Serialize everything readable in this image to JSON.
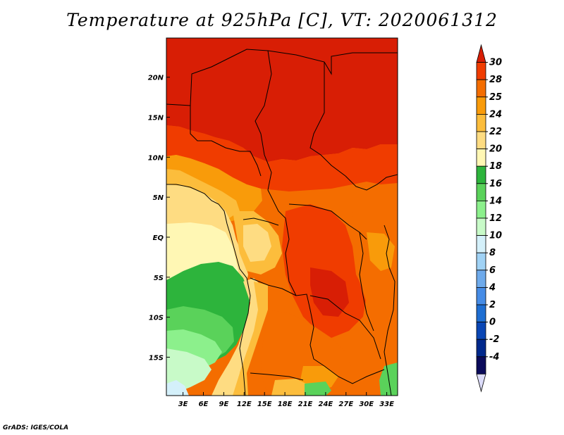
{
  "title": "Temperature at 925hPa [C], VT: 2020061312",
  "credit": "GrADS: IGES/COLA",
  "map": {
    "lon_labels": [
      "3E",
      "6E",
      "9E",
      "12E",
      "15E",
      "18E",
      "21E",
      "24E",
      "27E",
      "30E",
      "33E"
    ],
    "lat_labels": [
      "20N",
      "15N",
      "10N",
      "5N",
      "EQ",
      "5S",
      "10S",
      "15S"
    ]
  },
  "colorbar": {
    "labels": [
      "30",
      "28",
      "25",
      "24",
      "22",
      "20",
      "18",
      "16",
      "14",
      "12",
      "10",
      "8",
      "6",
      "4",
      "2",
      "0",
      "-2",
      "-4"
    ],
    "colors": [
      "#d81e05",
      "#f03c00",
      "#f46d00",
      "#f99b0a",
      "#fcbd3c",
      "#fedc82",
      "#fff7b4",
      "#2db43c",
      "#5ad25a",
      "#8cf08c",
      "#c8fac8",
      "#d4f0fa",
      "#a0d2f5",
      "#6eaaeb",
      "#468ce6",
      "#1e6ed2",
      "#0a46b4",
      "#00288c",
      "#0a0a5a",
      "#dcdcfa"
    ]
  }
}
